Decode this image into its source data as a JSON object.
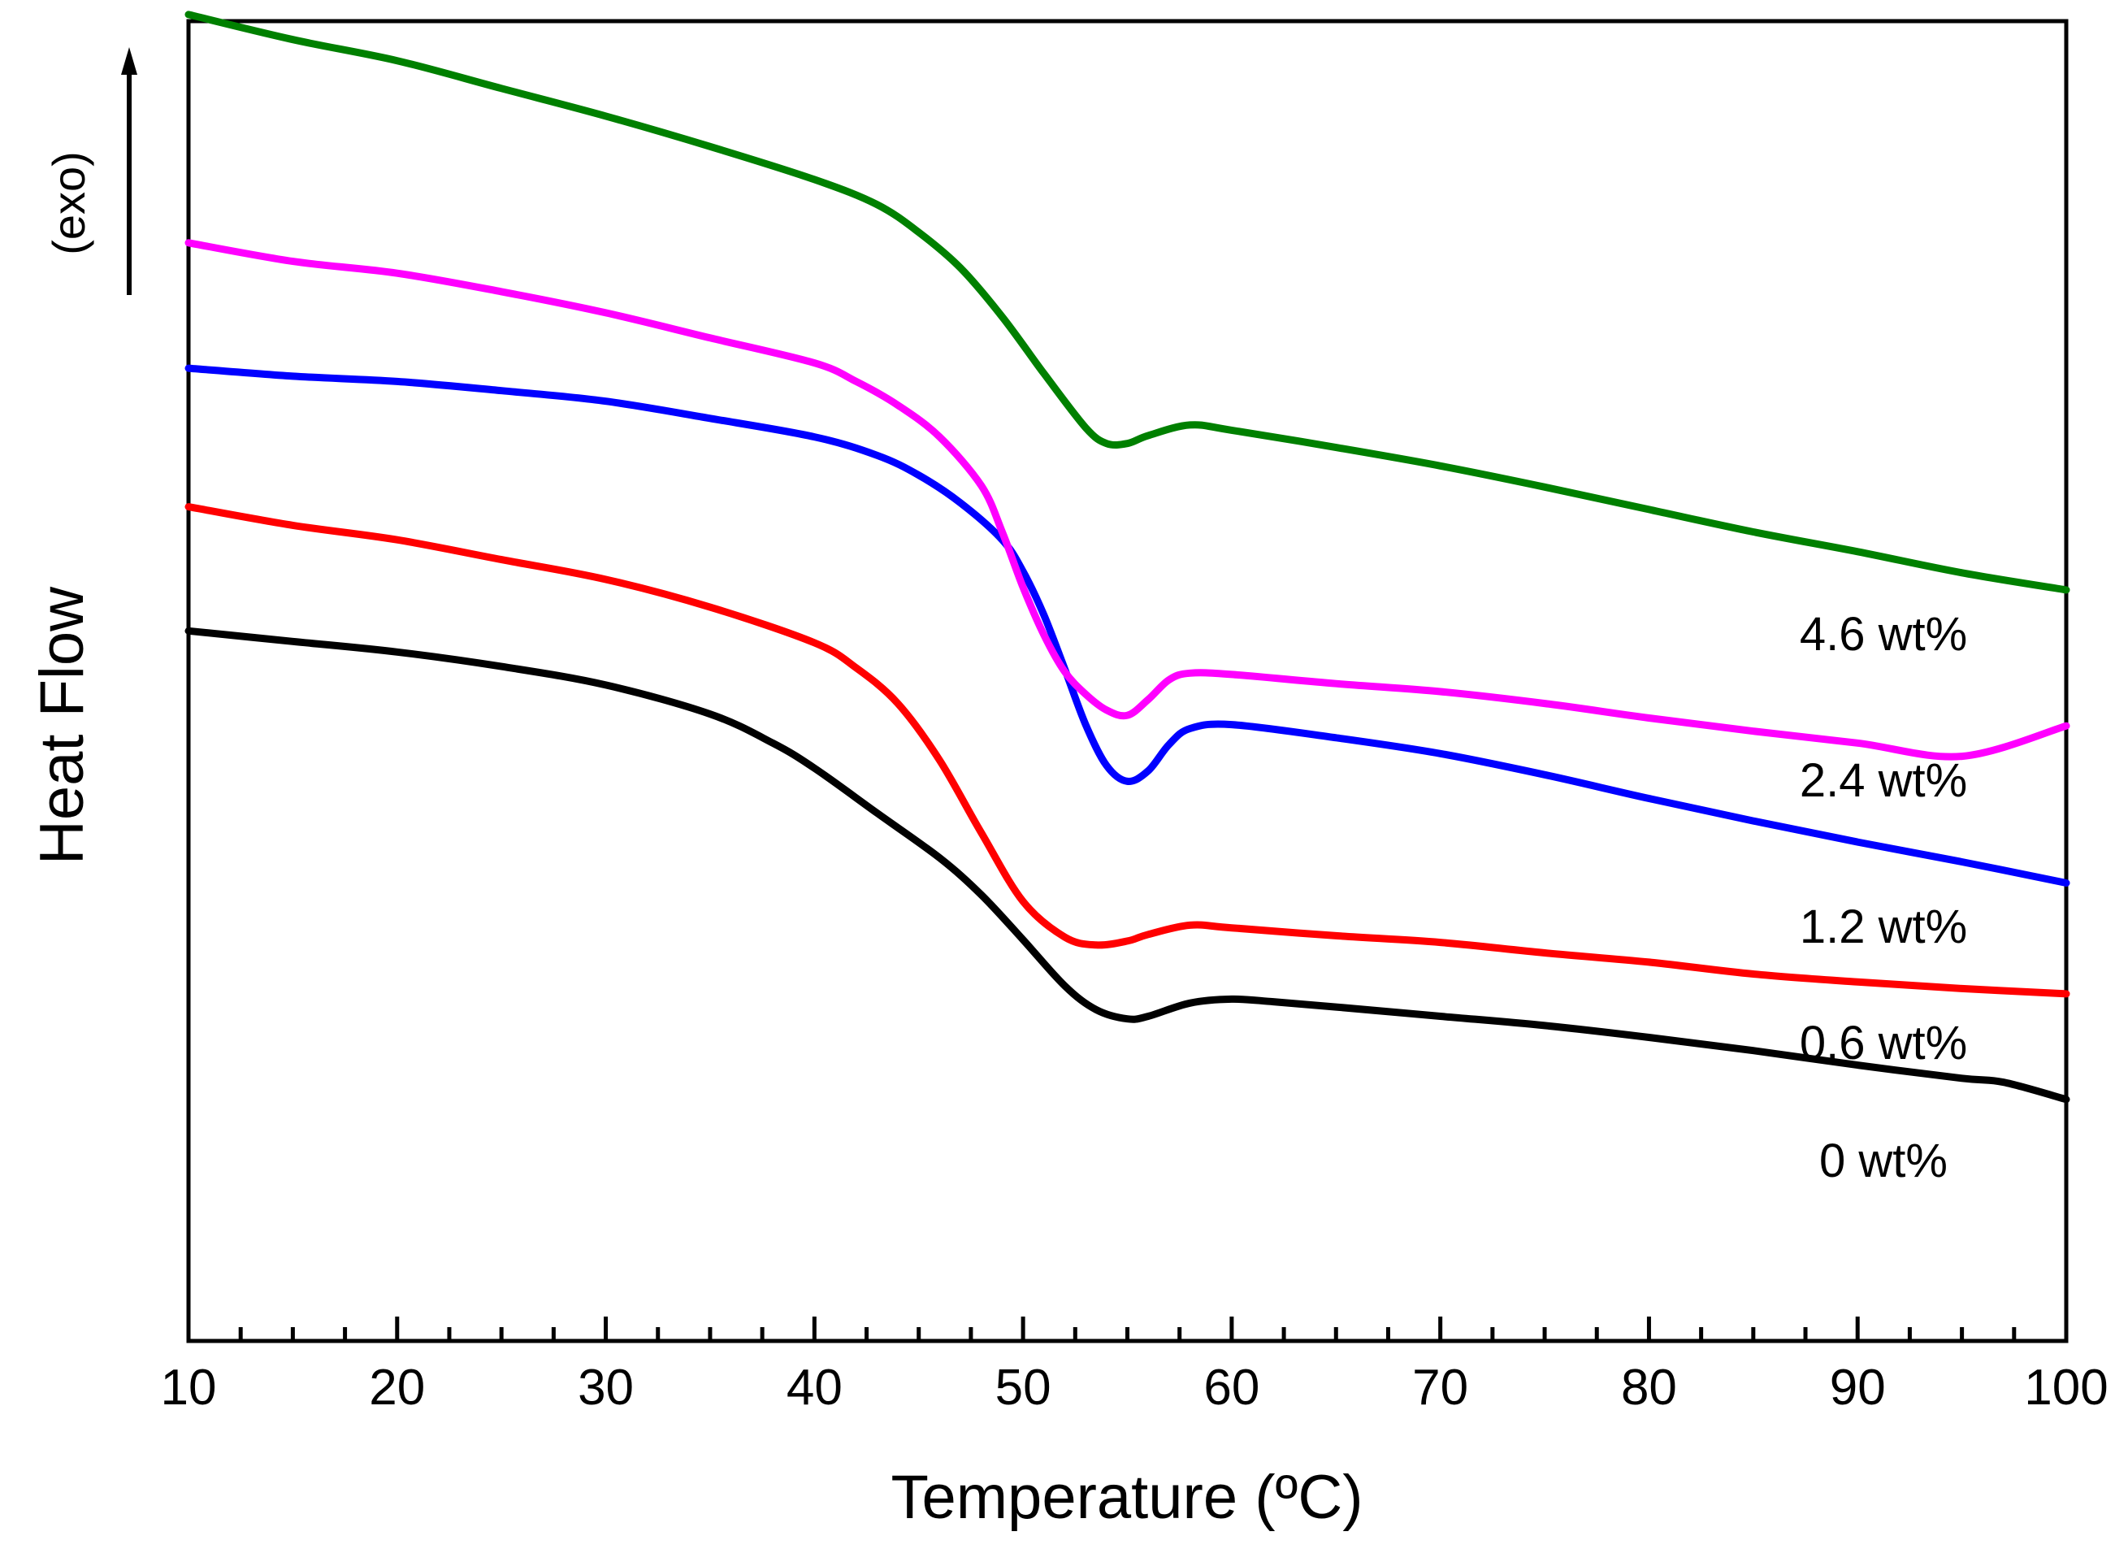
{
  "chart_data": {
    "type": "line",
    "title": "",
    "xlabel": "Temperature (ºC)",
    "ylabel": "Heat Flow",
    "exo_label": "(exo)",
    "xlim": [
      10,
      100
    ],
    "ylim": [
      0,
      100
    ],
    "y_ticks_shown": false,
    "x_ticks": [
      "10",
      "20",
      "30",
      "40",
      "50",
      "60",
      "70",
      "80",
      "90",
      "100"
    ],
    "grid": false,
    "legend": "inline labels at right",
    "series": [
      {
        "name": "0 wt%",
        "color": "#000000",
        "points": [
          [
            10,
            53.8
          ],
          [
            15,
            53.0
          ],
          [
            20,
            52.2
          ],
          [
            25,
            51.1
          ],
          [
            30,
            49.7
          ],
          [
            35,
            47.5
          ],
          [
            38,
            45.3
          ],
          [
            40,
            43.4
          ],
          [
            43,
            40.0
          ],
          [
            46,
            36.6
          ],
          [
            48,
            33.8
          ],
          [
            50,
            30.4
          ],
          [
            52,
            26.9
          ],
          [
            53.5,
            25.1
          ],
          [
            55,
            24.4
          ],
          [
            56,
            24.6
          ],
          [
            58,
            25.6
          ],
          [
            60,
            25.9
          ],
          [
            62,
            25.7
          ],
          [
            65,
            25.3
          ],
          [
            70,
            24.6
          ],
          [
            75,
            23.9
          ],
          [
            80,
            23.0
          ],
          [
            85,
            22.0
          ],
          [
            90,
            20.9
          ],
          [
            95,
            19.9
          ],
          [
            97,
            19.6
          ],
          [
            100,
            18.3
          ]
        ]
      },
      {
        "name": "0.6 wt%",
        "color": "#ff0000",
        "points": [
          [
            10,
            63.2
          ],
          [
            15,
            61.8
          ],
          [
            20,
            60.7
          ],
          [
            25,
            59.2
          ],
          [
            30,
            57.7
          ],
          [
            35,
            55.6
          ],
          [
            40,
            52.9
          ],
          [
            42,
            51.0
          ],
          [
            44,
            48.3
          ],
          [
            46,
            44.0
          ],
          [
            48,
            38.5
          ],
          [
            50,
            33.3
          ],
          [
            52,
            30.6
          ],
          [
            53.5,
            30.0
          ],
          [
            55,
            30.3
          ],
          [
            56,
            30.8
          ],
          [
            58,
            31.5
          ],
          [
            60,
            31.3
          ],
          [
            65,
            30.7
          ],
          [
            70,
            30.2
          ],
          [
            75,
            29.4
          ],
          [
            80,
            28.7
          ],
          [
            85,
            27.8
          ],
          [
            90,
            27.2
          ],
          [
            95,
            26.7
          ],
          [
            100,
            26.3
          ]
        ]
      },
      {
        "name": "1.2 wt%",
        "color": "#0000ff",
        "points": [
          [
            10,
            73.7
          ],
          [
            15,
            73.1
          ],
          [
            20,
            72.7
          ],
          [
            25,
            72.0
          ],
          [
            30,
            71.2
          ],
          [
            35,
            69.9
          ],
          [
            40,
            68.5
          ],
          [
            43,
            67.1
          ],
          [
            45,
            65.6
          ],
          [
            47,
            63.5
          ],
          [
            49,
            60.7
          ],
          [
            50,
            58.3
          ],
          [
            51,
            55.0
          ],
          [
            52,
            50.9
          ],
          [
            53,
            46.7
          ],
          [
            54,
            43.6
          ],
          [
            55,
            42.4
          ],
          [
            56,
            43.2
          ],
          [
            57,
            45.2
          ],
          [
            58,
            46.4
          ],
          [
            60,
            46.7
          ],
          [
            65,
            45.7
          ],
          [
            70,
            44.5
          ],
          [
            75,
            42.9
          ],
          [
            80,
            41.1
          ],
          [
            85,
            39.4
          ],
          [
            90,
            37.8
          ],
          [
            95,
            36.3
          ],
          [
            100,
            34.7
          ]
        ]
      },
      {
        "name": "2.4 wt%",
        "color": "#ff00ff",
        "points": [
          [
            10,
            83.2
          ],
          [
            15,
            81.8
          ],
          [
            20,
            80.9
          ],
          [
            25,
            79.5
          ],
          [
            30,
            77.9
          ],
          [
            35,
            76.0
          ],
          [
            40,
            74.1
          ],
          [
            42,
            72.7
          ],
          [
            44,
            70.9
          ],
          [
            46,
            68.5
          ],
          [
            48,
            64.8
          ],
          [
            49,
            61.3
          ],
          [
            50,
            57.1
          ],
          [
            51,
            53.5
          ],
          [
            52,
            50.7
          ],
          [
            53,
            49.0
          ],
          [
            54,
            47.8
          ],
          [
            55,
            47.4
          ],
          [
            56,
            48.6
          ],
          [
            57,
            50.1
          ],
          [
            58,
            50.6
          ],
          [
            60,
            50.5
          ],
          [
            65,
            49.8
          ],
          [
            70,
            49.2
          ],
          [
            75,
            48.3
          ],
          [
            80,
            47.2
          ],
          [
            85,
            46.2
          ],
          [
            90,
            45.3
          ],
          [
            95,
            44.3
          ],
          [
            100,
            46.6
          ]
        ]
      },
      {
        "name": "4.6 wt%",
        "color": "#008000",
        "points": [
          [
            10,
            100.5
          ],
          [
            15,
            98.6
          ],
          [
            20,
            97.0
          ],
          [
            25,
            94.9
          ],
          [
            30,
            92.8
          ],
          [
            35,
            90.5
          ],
          [
            40,
            88.0
          ],
          [
            43,
            86.1
          ],
          [
            45,
            84.0
          ],
          [
            47,
            81.3
          ],
          [
            49,
            77.6
          ],
          [
            51,
            73.3
          ],
          [
            53,
            69.2
          ],
          [
            54,
            68.0
          ],
          [
            55,
            68.0
          ],
          [
            56,
            68.6
          ],
          [
            58,
            69.4
          ],
          [
            60,
            69.0
          ],
          [
            65,
            67.7
          ],
          [
            70,
            66.3
          ],
          [
            75,
            64.7
          ],
          [
            80,
            63.0
          ],
          [
            85,
            61.3
          ],
          [
            90,
            59.8
          ],
          [
            95,
            58.2
          ],
          [
            100,
            56.9
          ]
        ]
      }
    ]
  }
}
